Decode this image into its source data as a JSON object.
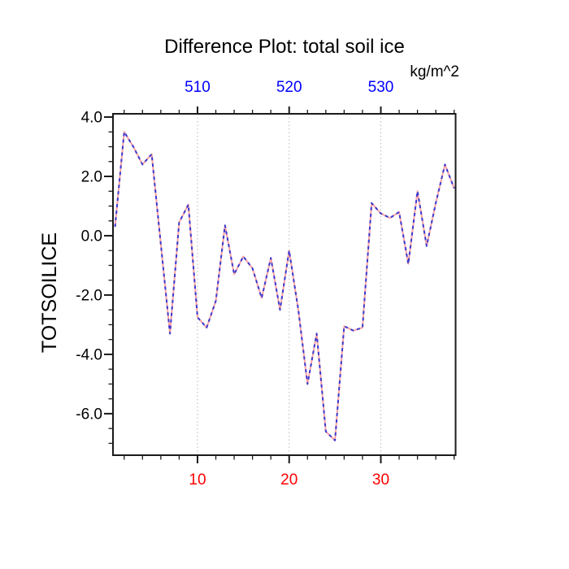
{
  "title": {
    "text": "Difference Plot: total soil ice",
    "color": "#000000"
  },
  "top_axis": {
    "unit_label": "kg/m^2",
    "tick_labels": [
      "510",
      "520",
      "530"
    ],
    "tick_values": [
      510,
      520,
      530
    ],
    "aligned_with_bottom_values": [
      10,
      20,
      30
    ],
    "label_color": "#0000ff"
  },
  "bottom_axis": {
    "tick_labels": [
      "10",
      "20",
      "30"
    ],
    "tick_values": [
      10,
      20,
      30
    ],
    "minor_step": 2,
    "minor_range": [
      2,
      38
    ],
    "label_color": "#ff0000"
  },
  "left_axis": {
    "title": "TOTSOILICE",
    "tick_labels": [
      "4.0",
      "2.0",
      "0.0",
      "-2.0",
      "-4.0",
      "-6.0"
    ],
    "tick_values": [
      4,
      2,
      0,
      -2,
      -4,
      -6
    ],
    "minor_step": 0.5,
    "minor_range": [
      -7,
      4
    ],
    "label_color": "#000000"
  },
  "grid": {
    "x_values": [
      10,
      20,
      30
    ],
    "color": "#b8b8b8",
    "style": "dotted"
  },
  "frame_color": "#1a1a1a",
  "chart_data": {
    "type": "line",
    "title": "Difference Plot: total soil ice",
    "ylabel": "TOTSOILICE",
    "top_axis_unit": "kg/m^2",
    "xlim": [
      0.78,
      38.16
    ],
    "ylim": [
      -7.4,
      4.11
    ],
    "grid": "vertical-only",
    "legend": "none",
    "x": [
      1,
      2,
      3,
      4,
      5,
      6,
      7,
      8,
      9,
      10,
      11,
      12,
      13,
      14,
      15,
      16,
      17,
      18,
      19,
      20,
      21,
      22,
      23,
      24,
      25,
      26,
      27,
      28,
      29,
      30,
      31,
      32,
      33,
      34,
      35,
      36,
      37,
      38
    ],
    "values": [
      0.3,
      3.5,
      3.0,
      2.4,
      2.75,
      -0.3,
      -3.3,
      0.45,
      1.05,
      -2.75,
      -3.1,
      -2.2,
      0.35,
      -1.3,
      -0.7,
      -1.1,
      -2.1,
      -0.75,
      -2.5,
      -0.5,
      -2.5,
      -5.0,
      -3.3,
      -6.6,
      -6.9,
      -3.05,
      -3.2,
      -3.1,
      1.1,
      0.75,
      0.6,
      0.8,
      -0.95,
      1.5,
      -0.35,
      1.1,
      2.4,
      1.6
    ],
    "line_style": {
      "under_color": "#ffa3a3",
      "under_style": "solid",
      "over_color": "#3a3ad0",
      "over_style": "dashed"
    }
  }
}
